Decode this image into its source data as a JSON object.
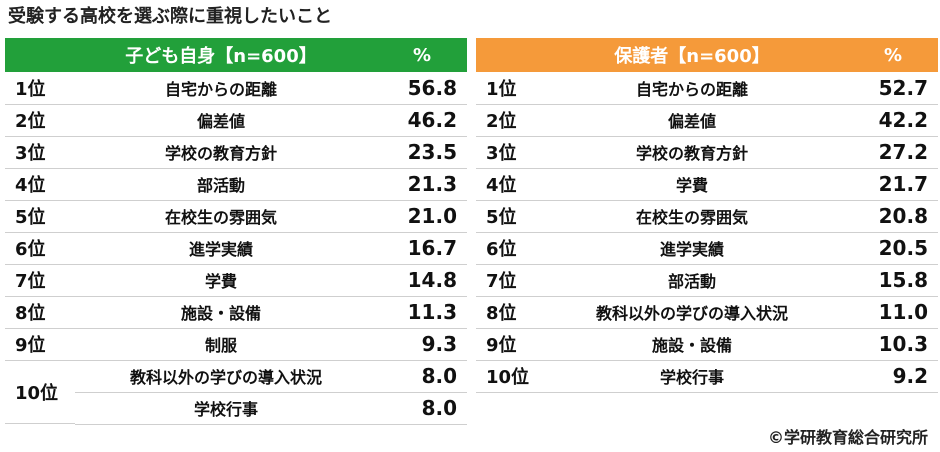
{
  "title": "受験する高校を選ぶ際に重視したいこと",
  "credit": "©学研教育総合研究所",
  "chart_data": [
    {
      "type": "table",
      "header": {
        "label": "子ども自身【n=600】",
        "unit": "%"
      },
      "color": "#22a03a",
      "rows": [
        {
          "rank": "1位",
          "item": "自宅からの距離",
          "value": "56.8"
        },
        {
          "rank": "2位",
          "item": "偏差値",
          "value": "46.2"
        },
        {
          "rank": "3位",
          "item": "学校の教育方針",
          "value": "23.5"
        },
        {
          "rank": "4位",
          "item": "部活動",
          "value": "21.3"
        },
        {
          "rank": "5位",
          "item": "在校生の雰囲気",
          "value": "21.0"
        },
        {
          "rank": "6位",
          "item": "進学実績",
          "value": "16.7"
        },
        {
          "rank": "7位",
          "item": "学費",
          "value": "14.8"
        },
        {
          "rank": "8位",
          "item": "施設・設備",
          "value": "11.3"
        },
        {
          "rank": "9位",
          "item": "制服",
          "value": "9.3"
        }
      ],
      "tie": {
        "rank": "10位",
        "items": [
          {
            "item": "教科以外の学びの導入状況",
            "value": "8.0"
          },
          {
            "item": "学校行事",
            "value": "8.0"
          }
        ]
      }
    },
    {
      "type": "table",
      "header": {
        "label": "保護者【n=600】",
        "unit": "%"
      },
      "color": "#f59a3a",
      "rows": [
        {
          "rank": "1位",
          "item": "自宅からの距離",
          "value": "52.7"
        },
        {
          "rank": "2位",
          "item": "偏差値",
          "value": "42.2"
        },
        {
          "rank": "3位",
          "item": "学校の教育方針",
          "value": "27.2"
        },
        {
          "rank": "4位",
          "item": "学費",
          "value": "21.7"
        },
        {
          "rank": "5位",
          "item": "在校生の雰囲気",
          "value": "20.8"
        },
        {
          "rank": "6位",
          "item": "進学実績",
          "value": "20.5"
        },
        {
          "rank": "7位",
          "item": "部活動",
          "value": "15.8"
        },
        {
          "rank": "8位",
          "item": "教科以外の学びの導入状況",
          "value": "11.0"
        },
        {
          "rank": "9位",
          "item": "施設・設備",
          "value": "10.3"
        },
        {
          "rank": "10位",
          "item": "学校行事",
          "value": "9.2"
        }
      ]
    }
  ]
}
